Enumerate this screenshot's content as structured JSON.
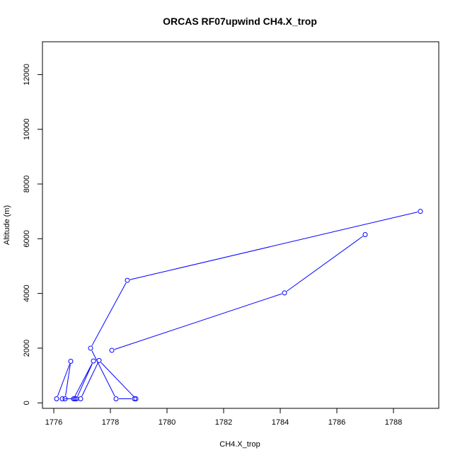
{
  "chart_data": {
    "type": "line",
    "title": "ORCAS RF07upwind CH4.X_trop",
    "xlabel": "CH4.X_trop",
    "ylabel": "Altitude (m)",
    "xlim": [
      1775.6,
      1789.6
    ],
    "ylim": [
      -200,
      13200
    ],
    "x_ticks": [
      1776,
      1778,
      1780,
      1782,
      1784,
      1786,
      1788
    ],
    "y_ticks": [
      0,
      2000,
      4000,
      6000,
      8000,
      10000,
      12000
    ],
    "series": [
      {
        "color": "#0000ff",
        "marker": "open-circle",
        "points": [
          {
            "x": 1788.95,
            "y": 7000
          },
          {
            "x": 1778.6,
            "y": 4480
          },
          {
            "x": 1777.3,
            "y": 2000
          },
          {
            "x": 1778.2,
            "y": 150
          },
          {
            "x": 1778.85,
            "y": 150
          },
          {
            "x": 1778.9,
            "y": 150
          },
          {
            "x": 1777.6,
            "y": 1550
          },
          {
            "x": 1776.95,
            "y": 150
          },
          {
            "x": 1776.75,
            "y": 150
          },
          {
            "x": 1776.7,
            "y": 150
          },
          {
            "x": 1777.4,
            "y": 1530
          },
          {
            "x": 1776.8,
            "y": 150
          },
          {
            "x": 1776.3,
            "y": 150
          },
          {
            "x": 1776.4,
            "y": 150
          },
          {
            "x": 1776.6,
            "y": 1520
          },
          {
            "x": 1776.1,
            "y": 150
          }
        ]
      },
      {
        "color": "#0000ff",
        "marker": "open-circle",
        "points": [
          {
            "x": 1787.0,
            "y": 6150
          },
          {
            "x": 1784.15,
            "y": 4020
          },
          {
            "x": 1778.05,
            "y": 1920
          }
        ]
      }
    ]
  }
}
